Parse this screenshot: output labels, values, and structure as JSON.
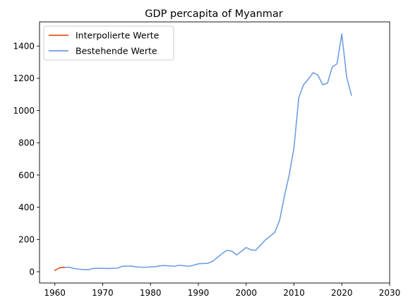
{
  "chart_data": {
    "type": "line",
    "title": "GDP percapita of Myanmar",
    "xlabel": "",
    "ylabel": "",
    "xlim": [
      1956.8,
      2030
    ],
    "ylim": [
      -70,
      1550
    ],
    "x_ticks": [
      1960,
      1970,
      1980,
      1990,
      2000,
      2010,
      2020,
      2030
    ],
    "y_ticks": [
      0,
      200,
      400,
      600,
      800,
      1000,
      1200,
      1400
    ],
    "grid": false,
    "legend_position": "top-left",
    "series": [
      {
        "name": "Interpolierte Werte",
        "color": "#e8541a",
        "x": [
          1960,
          1961,
          1962
        ],
        "y": [
          8,
          25,
          27
        ]
      },
      {
        "name": "Bestehende Werte",
        "color": "#6f9ee3",
        "x": [
          1961,
          1962,
          1963,
          1964,
          1965,
          1966,
          1967,
          1968,
          1969,
          1970,
          1971,
          1972,
          1973,
          1974,
          1975,
          1976,
          1977,
          1978,
          1979,
          1980,
          1981,
          1982,
          1983,
          1984,
          1985,
          1986,
          1987,
          1988,
          1989,
          1990,
          1991,
          1992,
          1993,
          1994,
          1995,
          1996,
          1997,
          1998,
          1999,
          2000,
          2001,
          2002,
          2003,
          2004,
          2005,
          2006,
          2007,
          2008,
          2009,
          2010,
          2011,
          2012,
          2013,
          2014,
          2015,
          2016,
          2017,
          2018,
          2019,
          2020,
          2021,
          2022
        ],
        "y": [
          25,
          27,
          28,
          20,
          16,
          13,
          13,
          20,
          21,
          21,
          20,
          21,
          22,
          33,
          35,
          35,
          30,
          28,
          28,
          30,
          31,
          37,
          38,
          36,
          34,
          40,
          37,
          34,
          40,
          49,
          51,
          52,
          65,
          88,
          113,
          133,
          128,
          104,
          127,
          150,
          136,
          133,
          165,
          197,
          220,
          245,
          320,
          470,
          600,
          770,
          1080,
          1160,
          1195,
          1235,
          1220,
          1160,
          1170,
          1270,
          1290,
          1475,
          1210,
          1095
        ]
      }
    ]
  }
}
